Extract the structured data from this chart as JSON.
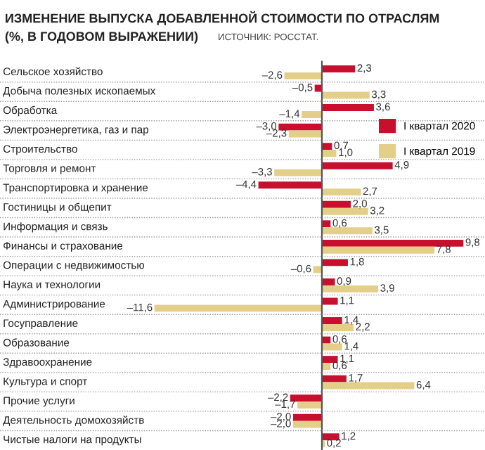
{
  "chart_data": {
    "type": "bar",
    "orientation": "horizontal",
    "title": "ИЗМЕНЕНИЕ ВЫПУСКА ДОБАВЛЕННОЙ СТОИМОСТИ ПО ОТРАСЛЯМ",
    "subtitle": "(%, В ГОДОВОМ ВЫРАЖЕНИИ)",
    "annotations": [
      "ИСТОЧНИК: РОССТАТ."
    ],
    "categories": [
      "Сельское хозяйство",
      "Добыча полезных ископаемых",
      "Обработка",
      "Электроэнергетика, газ и пар",
      "Строительство",
      "Торговля и ремонт",
      "Транспортировка и хранение",
      "Гостиницы и общепит",
      "Информация и связь",
      "Финансы и страхование",
      "Операции с недвижимостью",
      "Наука и технологии",
      "Администрирование",
      "Госуправление",
      "Образование",
      "Здравоохранение",
      "Культура и спорт",
      "Прочие услуги",
      "Деятельность домохозяйств",
      "Чистые налоги на продукты"
    ],
    "series": [
      {
        "name": "I квартал 2020",
        "color": "#c8102e",
        "values": [
          2.3,
          -0.5,
          3.6,
          -3.0,
          0.7,
          4.9,
          -4.4,
          2.0,
          0.6,
          9.8,
          1.8,
          0.9,
          1.1,
          1.4,
          0.6,
          1.1,
          1.7,
          -2.2,
          -2.0,
          1.2
        ],
        "value_labels": [
          "2,3",
          "–0,5",
          "3,6",
          "–3,0",
          "0,7",
          "4,9",
          "–4,4",
          "2,0",
          "0,6",
          "9,8",
          "1,8",
          "0,9",
          "1,1",
          "1,4",
          "0,6",
          "1,1",
          "1,7",
          "–2,2",
          "–2,0",
          "1,2"
        ]
      },
      {
        "name": "I квартал 2019",
        "color": "#e3cf8a",
        "values": [
          -2.6,
          3.3,
          -1.4,
          -2.3,
          1.0,
          -3.3,
          2.7,
          3.2,
          3.5,
          7.8,
          -0.6,
          3.9,
          -11.6,
          2.2,
          1.4,
          0.6,
          6.4,
          -1.7,
          -2.0,
          0.2
        ],
        "value_labels": [
          "–2,6",
          "3,3",
          "–1,4",
          "–2,3",
          "1,0",
          "–3,3",
          "2,7",
          "3,2",
          "3,5",
          "7,8",
          "–0,6",
          "3,9",
          "–11,6",
          "2,2",
          "1,4",
          "0,6",
          "6,4",
          "–1,7",
          "–2,0",
          "0,2"
        ]
      }
    ],
    "tick_labels": false,
    "legend": "right"
  }
}
